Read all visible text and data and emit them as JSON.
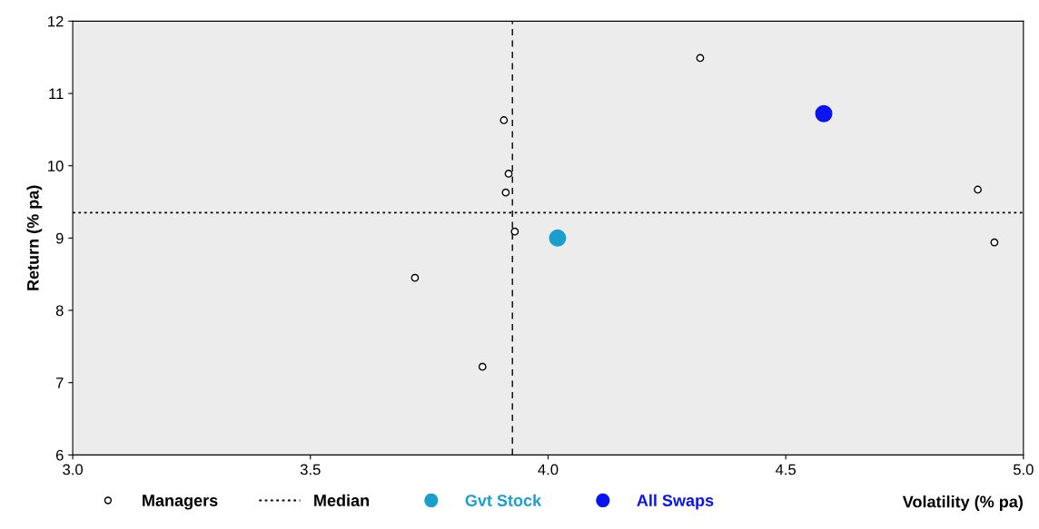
{
  "chart_data": {
    "type": "scatter",
    "xlabel": "Volatility (% pa)",
    "ylabel": "Return (% pa)",
    "xlim": [
      3.0,
      5.0
    ],
    "ylim": [
      6,
      12
    ],
    "xticks": [
      {
        "value": 3.0,
        "label": "3.0"
      },
      {
        "value": 3.5,
        "label": "3.5"
      },
      {
        "value": 4.0,
        "label": "4.0"
      },
      {
        "value": 4.5,
        "label": "4.5"
      },
      {
        "value": 5.0,
        "label": "5.0"
      }
    ],
    "yticks": [
      6,
      7,
      8,
      9,
      10,
      11,
      12
    ],
    "grid": false,
    "legend": "bottom",
    "marker": "circle",
    "series": [
      {
        "name": "Managers",
        "color": "#000000",
        "x": [
          3.907,
          3.917,
          3.911,
          3.93,
          3.72,
          3.862,
          4.32,
          4.904,
          4.939
        ],
        "values": [
          10.63,
          9.89,
          9.63,
          9.09,
          8.45,
          7.22,
          11.49,
          9.67,
          8.94
        ]
      },
      {
        "name": "Gvt Stock",
        "color": "#1a9fcc",
        "x": [
          4.02
        ],
        "values": [
          9.0
        ]
      },
      {
        "name": "All Swaps",
        "color": "#0a14f0",
        "x": [
          4.58
        ],
        "values": [
          10.72
        ]
      }
    ],
    "ref_lines": [
      {
        "axis": "y",
        "value": 9.35,
        "label": "Median",
        "line_style": "dotted",
        "color": "#000000"
      },
      {
        "axis": "x",
        "value": 3.925,
        "line_style": "dashed",
        "color": "#000000"
      }
    ]
  }
}
